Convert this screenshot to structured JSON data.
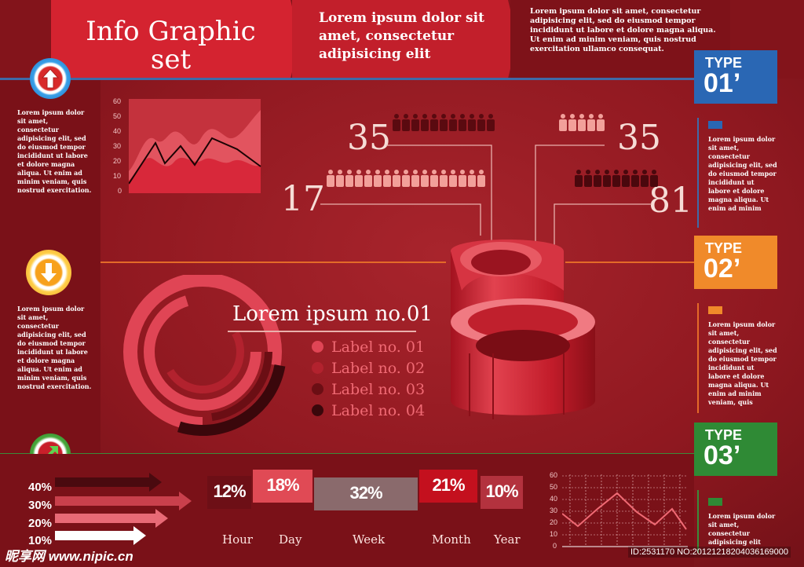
{
  "header": {
    "title_line1": "Info Graphic",
    "title_line2": "set",
    "subtitle": "Lorem ipsum dolor sit amet, consectetur adipisicing elit",
    "body": "Lorem ipsum dolor sit amet, consectetur adipisicing elit, sed do eiusmod tempor incididunt ut labore et dolore magna aliqua. Ut enim ad minim veniam, quis nostrud exercitation ullamco consequat."
  },
  "left_panel": {
    "blocks": [
      {
        "icon": "arrow-up-icon",
        "text": "Lorem ipsum dolor sit amet, consectetur adipisicing elit, sed do eiusmod tempor incididunt ut labore et dolore magna aliqua. Ut enim ad minim veniam, quis nostrud exercitation."
      },
      {
        "icon": "arrow-down-icon",
        "text": "Lorem ipsum dolor sit amet, consectetur adipisicing elit, sed do eiusmod tempor incididunt ut labore et dolore magna aliqua. Ut enim ad minim veniam, quis nostrud exercitation."
      },
      {
        "icon": "arrow-diagonal-icon"
      }
    ]
  },
  "area_chart": {
    "y_ticks": [
      "60",
      "50",
      "40",
      "30",
      "20",
      "10",
      "0"
    ]
  },
  "people_stats": [
    {
      "value": "35"
    },
    {
      "value": "35"
    },
    {
      "value": "17"
    },
    {
      "value": "81"
    }
  ],
  "donut": {
    "title": "Lorem ipsum no.01",
    "labels": [
      "Label no. 01",
      "Label no. 02",
      "Label no. 03",
      "Label no. 04"
    ],
    "colors": [
      "#e04555",
      "#b2222e",
      "#6b0e14",
      "#3a070b"
    ]
  },
  "types": [
    {
      "word": "TYPE",
      "num": "01’",
      "color": "#2a67b4",
      "text": "Lorem ipsum dolor sit amet, consectetur adipisicing elit, sed do eiusmod tempor incididunt ut labore et dolore magna aliqua. Ut enim ad minim"
    },
    {
      "word": "TYPE",
      "num": "02’",
      "color": "#f08a2a",
      "text": "Lorem ipsum dolor sit amet, consectetur adipisicing elit, sed do eiusmod tempor incididunt ut labore et dolore magna aliqua. Ut enim ad minim veniam, quis"
    },
    {
      "word": "TYPE",
      "num": "03’",
      "color": "#2f8a35",
      "text": "Lorem ipsum dolor sit amet, consectetur adipisicing elit"
    }
  ],
  "bar_arrows": {
    "labels": [
      "40%",
      "30%",
      "20%",
      "10%"
    ]
  },
  "time_stats": [
    {
      "pct": "12%",
      "period": "Hour"
    },
    {
      "pct": "18%",
      "period": "Day"
    },
    {
      "pct": "32%",
      "period": "Week"
    },
    {
      "pct": "21%",
      "period": "Month"
    },
    {
      "pct": "10%",
      "period": "Year"
    }
  ],
  "line_chart": {
    "y_ticks": [
      "60",
      "50",
      "40",
      "30",
      "20",
      "10",
      "0"
    ]
  },
  "watermark": {
    "site": "昵享网 www.nipic.cn",
    "id": "ID:2531170 NO:20121218204036169000"
  }
}
